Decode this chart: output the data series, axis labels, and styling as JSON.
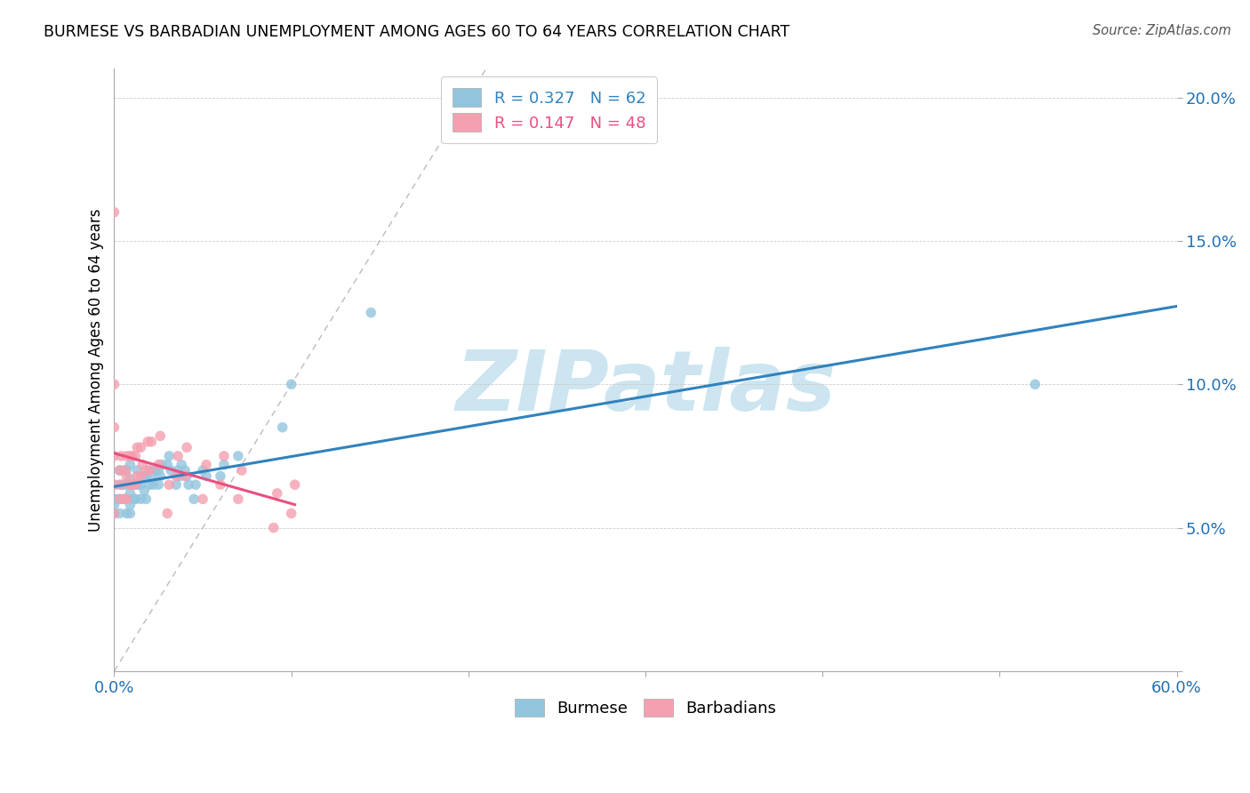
{
  "title": "BURMESE VS BARBADIAN UNEMPLOYMENT AMONG AGES 60 TO 64 YEARS CORRELATION CHART",
  "source": "Source: ZipAtlas.com",
  "ylabel": "Unemployment Among Ages 60 to 64 years",
  "xlim": [
    0.0,
    0.6
  ],
  "ylim": [
    0.0,
    0.21
  ],
  "xticks": [
    0.0,
    0.1,
    0.2,
    0.3,
    0.4,
    0.5,
    0.6
  ],
  "xticklabels": [
    "0.0%",
    "",
    "",
    "",
    "",
    "",
    "60.0%"
  ],
  "yticks": [
    0.0,
    0.05,
    0.1,
    0.15,
    0.2
  ],
  "yticklabels": [
    "",
    "5.0%",
    "10.0%",
    "15.0%",
    "20.0%"
  ],
  "burmese_R": 0.327,
  "burmese_N": 62,
  "barbadian_R": 0.147,
  "barbadian_N": 48,
  "burmese_color": "#92c5de",
  "barbadian_color": "#f4a0b0",
  "burmese_line_color": "#3182bd",
  "barbadian_line_color": "#e85080",
  "diagonal_color": "#bbbbbb",
  "watermark_text": "ZIPatlas",
  "watermark_color": "#cce5f0",
  "burmese_x": [
    0.0,
    0.0,
    0.0,
    0.0,
    0.0,
    0.003,
    0.003,
    0.003,
    0.003,
    0.005,
    0.005,
    0.005,
    0.007,
    0.007,
    0.007,
    0.007,
    0.009,
    0.009,
    0.009,
    0.009,
    0.009,
    0.011,
    0.011,
    0.012,
    0.013,
    0.013,
    0.015,
    0.015,
    0.016,
    0.017,
    0.018,
    0.018,
    0.02,
    0.02,
    0.021,
    0.022,
    0.023,
    0.025,
    0.025,
    0.026,
    0.027,
    0.03,
    0.031,
    0.032,
    0.035,
    0.036,
    0.037,
    0.038,
    0.04,
    0.041,
    0.042,
    0.045,
    0.046,
    0.05,
    0.052,
    0.06,
    0.062,
    0.07,
    0.095,
    0.1,
    0.145,
    0.52
  ],
  "burmese_y": [
    0.055,
    0.06,
    0.065,
    0.06,
    0.058,
    0.055,
    0.06,
    0.065,
    0.07,
    0.06,
    0.065,
    0.07,
    0.055,
    0.06,
    0.065,
    0.07,
    0.055,
    0.058,
    0.062,
    0.067,
    0.072,
    0.06,
    0.065,
    0.06,
    0.065,
    0.07,
    0.06,
    0.065,
    0.068,
    0.063,
    0.06,
    0.068,
    0.065,
    0.07,
    0.068,
    0.065,
    0.07,
    0.065,
    0.07,
    0.068,
    0.072,
    0.072,
    0.075,
    0.07,
    0.065,
    0.07,
    0.068,
    0.072,
    0.07,
    0.068,
    0.065,
    0.06,
    0.065,
    0.07,
    0.068,
    0.068,
    0.072,
    0.075,
    0.085,
    0.1,
    0.125,
    0.1
  ],
  "barbadian_x": [
    0.0,
    0.0,
    0.0,
    0.0,
    0.0,
    0.0,
    0.003,
    0.003,
    0.004,
    0.004,
    0.006,
    0.006,
    0.007,
    0.007,
    0.007,
    0.009,
    0.009,
    0.01,
    0.01,
    0.012,
    0.012,
    0.013,
    0.013,
    0.015,
    0.015,
    0.016,
    0.018,
    0.019,
    0.02,
    0.021,
    0.025,
    0.026,
    0.03,
    0.031,
    0.035,
    0.036,
    0.04,
    0.041,
    0.05,
    0.052,
    0.06,
    0.062,
    0.07,
    0.072,
    0.09,
    0.092,
    0.1,
    0.102
  ],
  "barbadian_y": [
    0.055,
    0.065,
    0.075,
    0.085,
    0.1,
    0.16,
    0.06,
    0.07,
    0.065,
    0.075,
    0.06,
    0.07,
    0.06,
    0.068,
    0.075,
    0.065,
    0.075,
    0.065,
    0.075,
    0.065,
    0.075,
    0.068,
    0.078,
    0.068,
    0.078,
    0.072,
    0.07,
    0.08,
    0.07,
    0.08,
    0.072,
    0.082,
    0.055,
    0.065,
    0.068,
    0.075,
    0.068,
    0.078,
    0.06,
    0.072,
    0.065,
    0.075,
    0.06,
    0.07,
    0.05,
    0.062,
    0.055,
    0.065
  ]
}
